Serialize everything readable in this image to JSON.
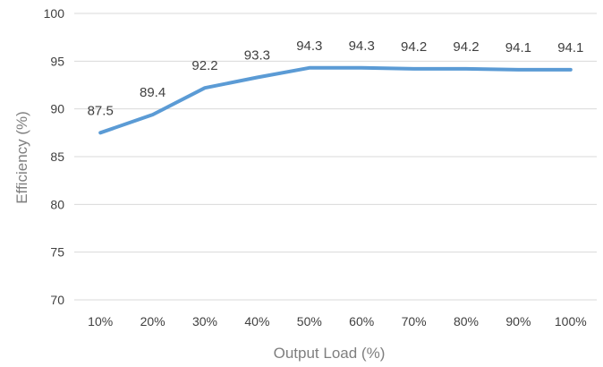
{
  "chart_data": {
    "type": "line",
    "title": "",
    "xlabel": "Output Load (%)",
    "ylabel": "Efficiency (%)",
    "categories": [
      "10%",
      "20%",
      "30%",
      "40%",
      "50%",
      "60%",
      "70%",
      "80%",
      "90%",
      "100%"
    ],
    "series": [
      {
        "values": [
          87.5,
          89.4,
          92.2,
          93.3,
          94.3,
          94.3,
          94.2,
          94.2,
          94.1,
          94.1
        ],
        "data_labels": [
          "87.5",
          "89.4",
          "92.2",
          "93.3",
          "94.3",
          "94.3",
          "94.2",
          "94.2",
          "94.1",
          "94.1"
        ],
        "color": "#5b9bd5"
      }
    ],
    "ylim": [
      70,
      100
    ],
    "yticks": [
      "70",
      "75",
      "80",
      "85",
      "90",
      "95",
      "100"
    ],
    "grid": true,
    "legend": "none"
  }
}
